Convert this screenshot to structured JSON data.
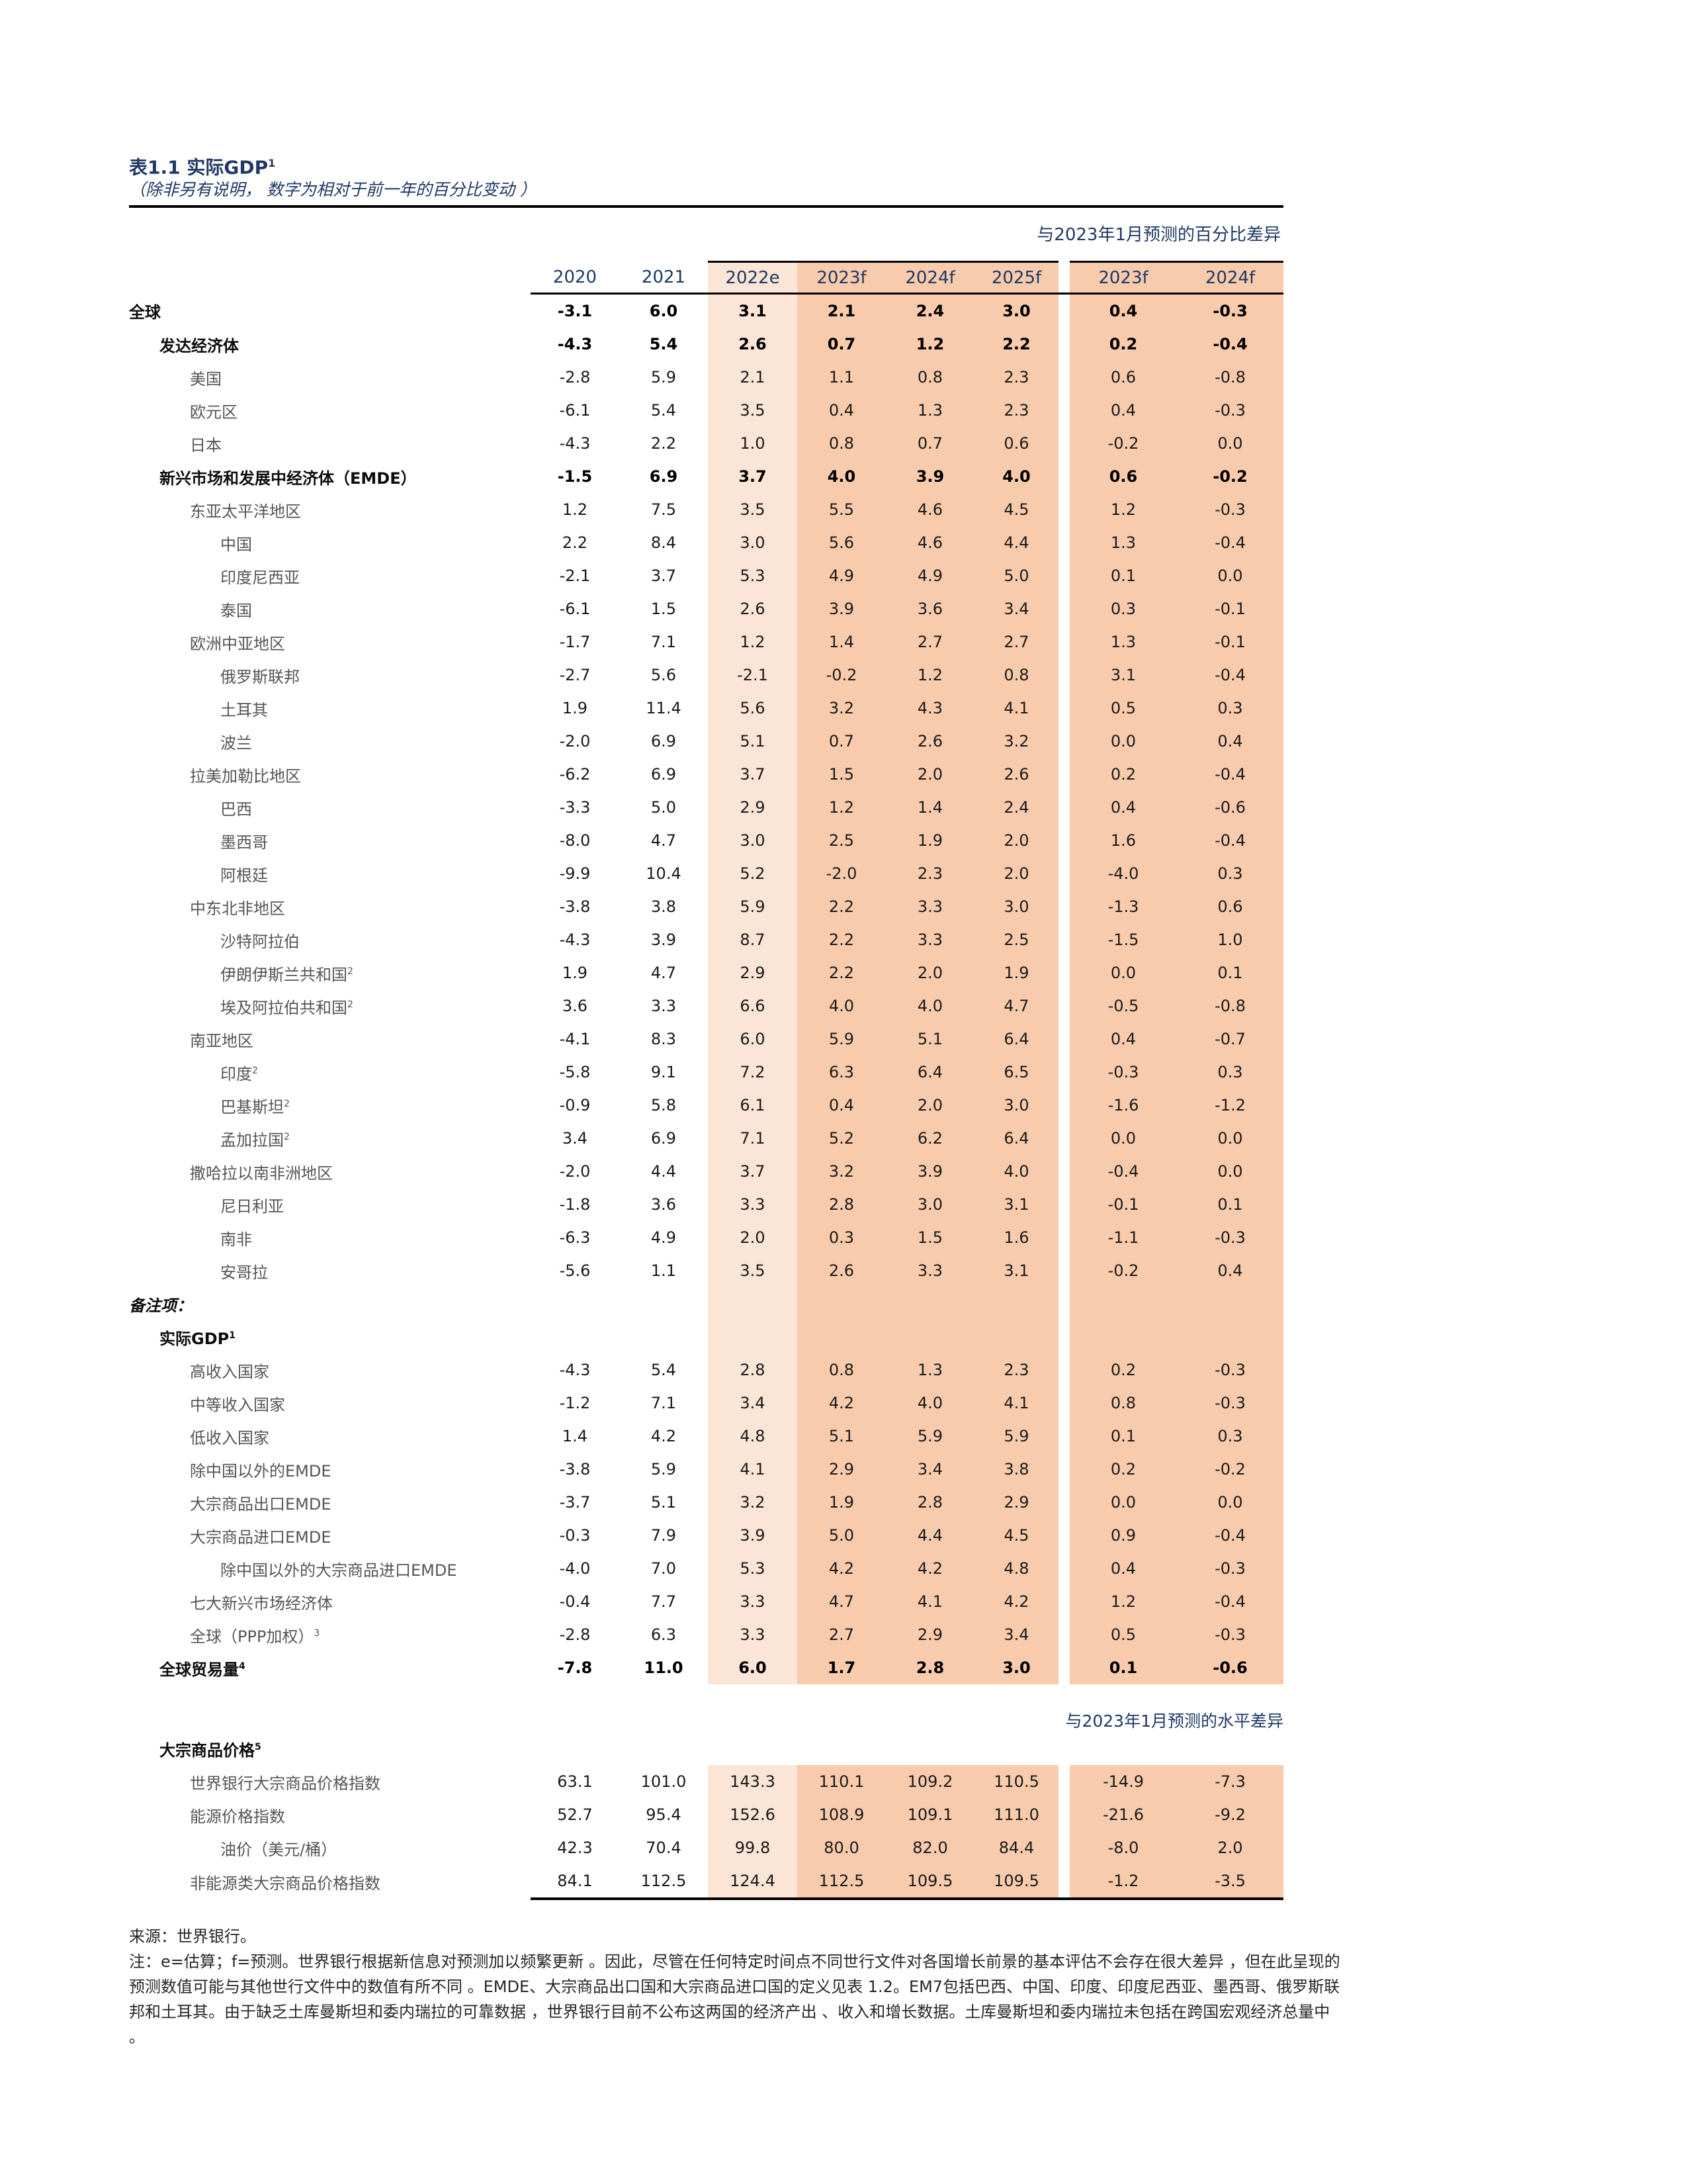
{
  "page": {
    "title": "表1.1 实际GDP",
    "title_sup": "1",
    "subtitle": "（除非另有说明， 数字为相对于前一年的百分比变动 ）",
    "band1_caption": "与2023年1月预测的百分比差异",
    "band2_caption": "与2023年1月预测的水平差异"
  },
  "colors": {
    "light_band": "#fbe5d6",
    "dark_band": "#f8cbad",
    "navy": "#1f3864"
  },
  "table": {
    "year_headers": [
      "2020",
      "2021",
      "2022e",
      "2023f",
      "2024f",
      "2025f",
      "2023f",
      "2024f"
    ],
    "rows": [
      {
        "label": "全球",
        "indent": 0,
        "bold": true,
        "shaded": true,
        "values": [
          "-3.1",
          "6.0",
          "3.1",
          "2.1",
          "2.4",
          "3.0",
          "0.4",
          "-0.3"
        ]
      },
      {
        "label": "发达经济体",
        "indent": 1,
        "bold": true,
        "shaded": true,
        "values": [
          "-4.3",
          "5.4",
          "2.6",
          "0.7",
          "1.2",
          "2.2",
          "0.2",
          "-0.4"
        ]
      },
      {
        "label": "美国",
        "indent": 2,
        "shaded": true,
        "values": [
          "-2.8",
          "5.9",
          "2.1",
          "1.1",
          "0.8",
          "2.3",
          "0.6",
          "-0.8"
        ]
      },
      {
        "label": "欧元区",
        "indent": 2,
        "shaded": true,
        "values": [
          "-6.1",
          "5.4",
          "3.5",
          "0.4",
          "1.3",
          "2.3",
          "0.4",
          "-0.3"
        ]
      },
      {
        "label": "日本",
        "indent": 2,
        "shaded": true,
        "values": [
          "-4.3",
          "2.2",
          "1.0",
          "0.8",
          "0.7",
          "0.6",
          "-0.2",
          "0.0"
        ]
      },
      {
        "label": "新兴市场和发展中经济体（EMDE）",
        "indent": 1,
        "bold": true,
        "shaded": true,
        "values": [
          "-1.5",
          "6.9",
          "3.7",
          "4.0",
          "3.9",
          "4.0",
          "0.6",
          "-0.2"
        ]
      },
      {
        "label": "东亚太平洋地区",
        "indent": 2,
        "shaded": true,
        "values": [
          "1.2",
          "7.5",
          "3.5",
          "5.5",
          "4.6",
          "4.5",
          "1.2",
          "-0.3"
        ]
      },
      {
        "label": "中国",
        "indent": 3,
        "shaded": true,
        "values": [
          "2.2",
          "8.4",
          "3.0",
          "5.6",
          "4.6",
          "4.4",
          "1.3",
          "-0.4"
        ]
      },
      {
        "label": "印度尼西亚",
        "indent": 3,
        "shaded": true,
        "values": [
          "-2.1",
          "3.7",
          "5.3",
          "4.9",
          "4.9",
          "5.0",
          "0.1",
          "0.0"
        ]
      },
      {
        "label": "泰国",
        "indent": 3,
        "shaded": true,
        "values": [
          "-6.1",
          "1.5",
          "2.6",
          "3.9",
          "3.6",
          "3.4",
          "0.3",
          "-0.1"
        ]
      },
      {
        "label": "欧洲中亚地区",
        "indent": 2,
        "shaded": true,
        "values": [
          "-1.7",
          "7.1",
          "1.2",
          "1.4",
          "2.7",
          "2.7",
          "1.3",
          "-0.1"
        ]
      },
      {
        "label": "俄罗斯联邦",
        "indent": 3,
        "shaded": true,
        "values": [
          "-2.7",
          "5.6",
          "-2.1",
          "-0.2",
          "1.2",
          "0.8",
          "3.1",
          "-0.4"
        ]
      },
      {
        "label": "土耳其",
        "indent": 3,
        "shaded": true,
        "values": [
          "1.9",
          "11.4",
          "5.6",
          "3.2",
          "4.3",
          "4.1",
          "0.5",
          "0.3"
        ]
      },
      {
        "label": "波兰",
        "indent": 3,
        "shaded": true,
        "values": [
          "-2.0",
          "6.9",
          "5.1",
          "0.7",
          "2.6",
          "3.2",
          "0.0",
          "0.4"
        ]
      },
      {
        "label": "拉美加勒比地区",
        "indent": 2,
        "shaded": true,
        "values": [
          "-6.2",
          "6.9",
          "3.7",
          "1.5",
          "2.0",
          "2.6",
          "0.2",
          "-0.4"
        ]
      },
      {
        "label": "巴西",
        "indent": 3,
        "shaded": true,
        "values": [
          "-3.3",
          "5.0",
          "2.9",
          "1.2",
          "1.4",
          "2.4",
          "0.4",
          "-0.6"
        ]
      },
      {
        "label": "墨西哥",
        "indent": 3,
        "shaded": true,
        "values": [
          "-8.0",
          "4.7",
          "3.0",
          "2.5",
          "1.9",
          "2.0",
          "1.6",
          "-0.4"
        ]
      },
      {
        "label": "阿根廷",
        "indent": 3,
        "shaded": true,
        "values": [
          "-9.9",
          "10.4",
          "5.2",
          "-2.0",
          "2.3",
          "2.0",
          "-4.0",
          "0.3"
        ]
      },
      {
        "label": "中东北非地区",
        "indent": 2,
        "shaded": true,
        "values": [
          "-3.8",
          "3.8",
          "5.9",
          "2.2",
          "3.3",
          "3.0",
          "-1.3",
          "0.6"
        ]
      },
      {
        "label": "沙特阿拉伯",
        "indent": 3,
        "shaded": true,
        "values": [
          "-4.3",
          "3.9",
          "8.7",
          "2.2",
          "3.3",
          "2.5",
          "-1.5",
          "1.0"
        ]
      },
      {
        "label": "伊朗伊斯兰共和国",
        "sup": "2",
        "indent": 3,
        "shaded": true,
        "values": [
          "1.9",
          "4.7",
          "2.9",
          "2.2",
          "2.0",
          "1.9",
          "0.0",
          "0.1"
        ]
      },
      {
        "label": "埃及阿拉伯共和国",
        "sup": "2",
        "indent": 3,
        "shaded": true,
        "values": [
          "3.6",
          "3.3",
          "6.6",
          "4.0",
          "4.0",
          "4.7",
          "-0.5",
          "-0.8"
        ]
      },
      {
        "label": "南亚地区",
        "indent": 2,
        "shaded": true,
        "values": [
          "-4.1",
          "8.3",
          "6.0",
          "5.9",
          "5.1",
          "6.4",
          "0.4",
          "-0.7"
        ]
      },
      {
        "label": "印度",
        "sup": "2",
        "indent": 3,
        "shaded": true,
        "values": [
          "-5.8",
          "9.1",
          "7.2",
          "6.3",
          "6.4",
          "6.5",
          "-0.3",
          "0.3"
        ]
      },
      {
        "label": "巴基斯坦",
        "sup": "2",
        "indent": 3,
        "shaded": true,
        "values": [
          "-0.9",
          "5.8",
          "6.1",
          "0.4",
          "2.0",
          "3.0",
          "-1.6",
          "-1.2"
        ]
      },
      {
        "label": "孟加拉国",
        "sup": "2",
        "indent": 3,
        "shaded": true,
        "values": [
          "3.4",
          "6.9",
          "7.1",
          "5.2",
          "6.2",
          "6.4",
          "0.0",
          "0.0"
        ]
      },
      {
        "label": "撒哈拉以南非洲地区",
        "indent": 2,
        "shaded": true,
        "values": [
          "-2.0",
          "4.4",
          "3.7",
          "3.2",
          "3.9",
          "4.0",
          "-0.4",
          "0.0"
        ]
      },
      {
        "label": "尼日利亚",
        "indent": 3,
        "shaded": true,
        "values": [
          "-1.8",
          "3.6",
          "3.3",
          "2.8",
          "3.0",
          "3.1",
          "-0.1",
          "0.1"
        ]
      },
      {
        "label": "南非",
        "indent": 3,
        "shaded": true,
        "values": [
          "-6.3",
          "4.9",
          "2.0",
          "0.3",
          "1.5",
          "1.6",
          "-1.1",
          "-0.3"
        ]
      },
      {
        "label": "安哥拉",
        "indent": 3,
        "shaded": true,
        "values": [
          "-5.6",
          "1.1",
          "3.5",
          "2.6",
          "3.3",
          "3.1",
          "-0.2",
          "0.4"
        ]
      },
      {
        "label": "备注项：",
        "indent": 0,
        "bold": true,
        "italic": true,
        "shaded": true,
        "values": null
      },
      {
        "label": "实际GDP",
        "sup": "1",
        "indent": 1,
        "bold": true,
        "shaded": true,
        "values": null
      },
      {
        "label": "高收入国家",
        "indent": 2,
        "shaded": true,
        "values": [
          "-4.3",
          "5.4",
          "2.8",
          "0.8",
          "1.3",
          "2.3",
          "0.2",
          "-0.3"
        ]
      },
      {
        "label": "中等收入国家",
        "indent": 2,
        "shaded": true,
        "values": [
          "-1.2",
          "7.1",
          "3.4",
          "4.2",
          "4.0",
          "4.1",
          "0.8",
          "-0.3"
        ]
      },
      {
        "label": "低收入国家",
        "indent": 2,
        "shaded": true,
        "values": [
          "1.4",
          "4.2",
          "4.8",
          "5.1",
          "5.9",
          "5.9",
          "0.1",
          "0.3"
        ]
      },
      {
        "label": "除中国以外的EMDE",
        "indent": 2,
        "shaded": true,
        "values": [
          "-3.8",
          "5.9",
          "4.1",
          "2.9",
          "3.4",
          "3.8",
          "0.2",
          "-0.2"
        ]
      },
      {
        "label": "大宗商品出口EMDE",
        "indent": 2,
        "shaded": true,
        "values": [
          "-3.7",
          "5.1",
          "3.2",
          "1.9",
          "2.8",
          "2.9",
          "0.0",
          "0.0"
        ]
      },
      {
        "label": "大宗商品进口EMDE",
        "indent": 2,
        "shaded": true,
        "values": [
          "-0.3",
          "7.9",
          "3.9",
          "5.0",
          "4.4",
          "4.5",
          "0.9",
          "-0.4"
        ]
      },
      {
        "label": "除中国以外的大宗商品进口EMDE",
        "indent": 3,
        "shaded": true,
        "values": [
          "-4.0",
          "7.0",
          "5.3",
          "4.2",
          "4.2",
          "4.8",
          "0.4",
          "-0.3"
        ]
      },
      {
        "label": "七大新兴市场经济体",
        "indent": 2,
        "shaded": true,
        "values": [
          "-0.4",
          "7.7",
          "3.3",
          "4.7",
          "4.1",
          "4.2",
          "1.2",
          "-0.4"
        ]
      },
      {
        "label": "全球（PPP加权）",
        "sup": "3",
        "indent": 2,
        "shaded": true,
        "values": [
          "-2.8",
          "6.3",
          "3.3",
          "2.7",
          "2.9",
          "3.4",
          "0.5",
          "-0.3"
        ]
      },
      {
        "label": "全球贸易量",
        "sup": "4",
        "indent": 1,
        "bold": true,
        "shaded": true,
        "values": [
          "-7.8",
          "11.0",
          "6.0",
          "1.7",
          "2.8",
          "3.0",
          "0.1",
          "-0.6"
        ]
      },
      {
        "caption": true
      },
      {
        "label": "大宗商品价格",
        "sup": "5",
        "indent": 1,
        "bold": true,
        "shaded": false,
        "values": null
      },
      {
        "label": "世界银行大宗商品价格指数",
        "indent": 2,
        "shaded": true,
        "values": [
          "63.1",
          "101.0",
          "143.3",
          "110.1",
          "109.2",
          "110.5",
          "-14.9",
          "-7.3"
        ]
      },
      {
        "label": "能源价格指数",
        "indent": 2,
        "shaded": true,
        "values": [
          "52.7",
          "95.4",
          "152.6",
          "108.9",
          "109.1",
          "111.0",
          "-21.6",
          "-9.2"
        ]
      },
      {
        "label": "油价（美元/桶）",
        "indent": 3,
        "shaded": true,
        "values": [
          "42.3",
          "70.4",
          "99.8",
          "80.0",
          "82.0",
          "84.4",
          "-8.0",
          "2.0"
        ]
      },
      {
        "label": "非能源类大宗商品价格指数",
        "indent": 2,
        "shaded": true,
        "bottom": true,
        "values": [
          "84.1",
          "112.5",
          "124.4",
          "112.5",
          "109.5",
          "109.5",
          "-1.2",
          "-3.5"
        ]
      }
    ]
  },
  "footnotes": {
    "source": "来源：世界银行。",
    "note_lines": [
      "注：e=估算；f=预测。世界银行根据新信息对预测加以频繁更新 。因此，尽管在任何特定时间点不同世行文件对各国增长前景的基本评估不会存在很大差异 ，但在此呈现的",
      "预测数值可能与其他世行文件中的数值有所不同 。EMDE、大宗商品出口国和大宗商品进口国的定义见表 1.2。EM7包括巴西、中国、印度、印度尼西亚、墨西哥、俄罗斯联",
      "邦和土耳其。由于缺乏土库曼斯坦和委内瑞拉的可靠数据 ，世界银行目前不公布这两国的经济产出 、收入和增长数据。土库曼斯坦和委内瑞拉未包括在跨国宏观经济总量中",
      "。"
    ]
  }
}
